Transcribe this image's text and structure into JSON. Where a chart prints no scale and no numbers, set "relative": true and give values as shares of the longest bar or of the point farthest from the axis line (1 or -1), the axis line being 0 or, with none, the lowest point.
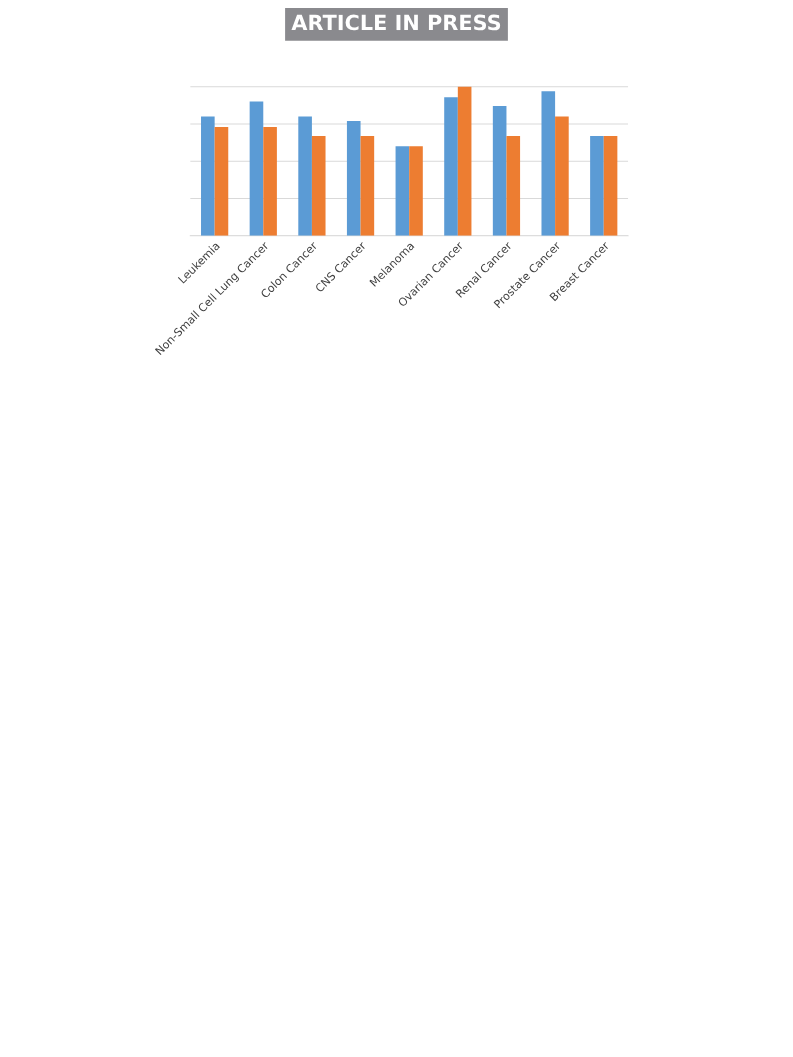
{
  "chart_data": {
    "type": "bar",
    "relative": true,
    "grid": "y",
    "categories": [
      "Leukemia",
      "Non-Small Cell Lung Cancer",
      "Colon Cancer",
      "CNS Cancer",
      "Melanoma",
      "Ovarian Cancer",
      "Renal Cancer",
      "Prostate Cancer",
      "Breast Cancer"
    ],
    "series": [
      {
        "color": "#5b9bd5",
        "values": [
          0.8,
          0.9,
          0.8,
          0.77,
          0.6,
          0.93,
          0.87,
          0.97,
          0.67
        ]
      },
      {
        "color": "#ed7d31",
        "values": [
          0.73,
          0.73,
          0.67,
          0.67,
          0.6,
          1,
          0.67,
          0.8,
          0.67
        ]
      }
    ],
    "annotations": [
      "ARTICLE IN PRESS"
    ]
  }
}
